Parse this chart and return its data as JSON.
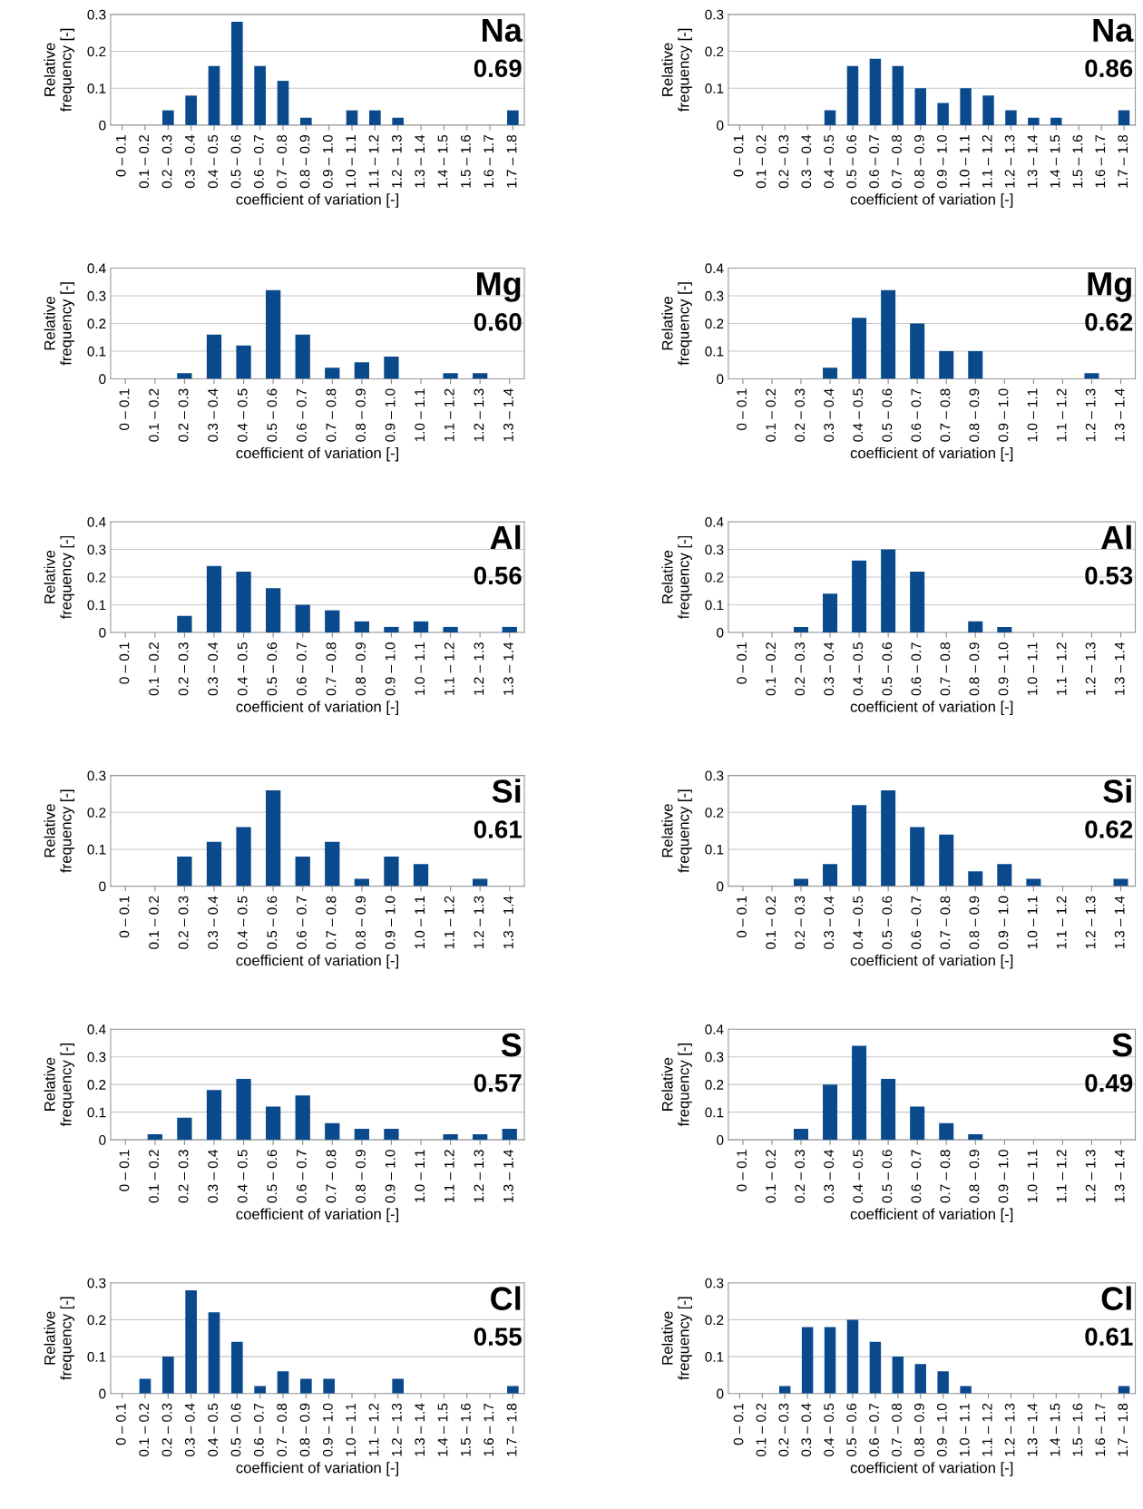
{
  "chart_data": [
    {
      "type": "bar",
      "categories": [
        "0 – 0.1",
        "0.1 – 0.2",
        "0.2 – 0.3",
        "0.3 – 0.4",
        "0.4 – 0.5",
        "0.5 – 0.6",
        "0.6 – 0.7",
        "0.7 – 0.8",
        "0.8 – 0.9",
        "0.9 – 1.0",
        "1.0 – 1.1",
        "1.1 – 1.2",
        "1.2 – 1.3",
        "1.3 – 1.4",
        "1.4 – 1.5",
        "1.5 – 1.6",
        "1.6 – 1.7",
        "1.7 – 1.8"
      ],
      "values": [
        0,
        0,
        0.04,
        0.08,
        0.16,
        0.28,
        0.16,
        0.12,
        0.02,
        0,
        0.04,
        0.04,
        0.02,
        0,
        0,
        0,
        0,
        0.04
      ],
      "color": "#0a4a8c",
      "ylim": [
        0,
        0.3
      ],
      "yticks": [
        0,
        0.1,
        0.2,
        0.3
      ],
      "grid": "y",
      "xlabel": "coefficient of variation [-]",
      "ylabel": "Relative\nfrequency [-]",
      "annotations": [
        "Na",
        "0.69"
      ]
    },
    {
      "type": "bar",
      "categories": [
        "0 – 0.1",
        "0.1 – 0.2",
        "0.2 – 0.3",
        "0.3 – 0.4",
        "0.4 – 0.5",
        "0.5 – 0.6",
        "0.6 – 0.7",
        "0.7 – 0.8",
        "0.8 – 0.9",
        "0.9 – 1.0",
        "1.0 – 1.1",
        "1.1 – 1.2",
        "1.2 – 1.3",
        "1.3 – 1.4",
        "1.4 – 1.5",
        "1.5 – 1.6",
        "1.6 – 1.7",
        "1.7 – 1.8"
      ],
      "values": [
        0,
        0,
        0,
        0,
        0.04,
        0.16,
        0.18,
        0.16,
        0.1,
        0.06,
        0.1,
        0.08,
        0.04,
        0.02,
        0.02,
        0,
        0,
        0.04
      ],
      "color": "#0a4a8c",
      "ylim": [
        0,
        0.3
      ],
      "yticks": [
        0,
        0.1,
        0.2,
        0.3
      ],
      "grid": "y",
      "xlabel": "coefficient of variation [-]",
      "ylabel": "Relative\nfrequency [-]",
      "annotations": [
        "Na",
        "0.86"
      ]
    },
    {
      "type": "bar",
      "categories": [
        "0 – 0.1",
        "0.1 – 0.2",
        "0.2 – 0.3",
        "0.3 – 0.4",
        "0.4 – 0.5",
        "0.5 – 0.6",
        "0.6 – 0.7",
        "0.7 – 0.8",
        "0.8 – 0.9",
        "0.9 – 1.0",
        "1.0 – 1.1",
        "1.1 – 1.2",
        "1.2 – 1.3",
        "1.3 – 1.4"
      ],
      "values": [
        0,
        0,
        0.02,
        0.16,
        0.12,
        0.32,
        0.16,
        0.04,
        0.06,
        0.08,
        0,
        0.02,
        0.02,
        0
      ],
      "color": "#0a4a8c",
      "ylim": [
        0,
        0.4
      ],
      "yticks": [
        0,
        0.1,
        0.2,
        0.3,
        0.4
      ],
      "grid": "y",
      "xlabel": "coefficient of variation [-]",
      "ylabel": "Relative\nfrequency [-]",
      "annotations": [
        "Mg",
        "0.60"
      ]
    },
    {
      "type": "bar",
      "categories": [
        "0 – 0.1",
        "0.1 – 0.2",
        "0.2 – 0.3",
        "0.3 – 0.4",
        "0.4 – 0.5",
        "0.5 – 0.6",
        "0.6 – 0.7",
        "0.7 – 0.8",
        "0.8 – 0.9",
        "0.9 – 1.0",
        "1.0 – 1.1",
        "1.1 – 1.2",
        "1.2 – 1.3",
        "1.3 – 1.4"
      ],
      "values": [
        0,
        0,
        0,
        0.04,
        0.22,
        0.32,
        0.2,
        0.1,
        0.1,
        0,
        0,
        0,
        0.02,
        0
      ],
      "color": "#0a4a8c",
      "ylim": [
        0,
        0.4
      ],
      "yticks": [
        0,
        0.1,
        0.2,
        0.3,
        0.4
      ],
      "grid": "y",
      "xlabel": "coefficient of variation [-]",
      "ylabel": "Relative\nfrequency [-]",
      "annotations": [
        "Mg",
        "0.62"
      ]
    },
    {
      "type": "bar",
      "categories": [
        "0 – 0.1",
        "0.1 – 0.2",
        "0.2 – 0.3",
        "0.3 – 0.4",
        "0.4 – 0.5",
        "0.5 – 0.6",
        "0.6 – 0.7",
        "0.7 – 0.8",
        "0.8 – 0.9",
        "0.9 – 1.0",
        "1.0 – 1.1",
        "1.1 – 1.2",
        "1.2 – 1.3",
        "1.3 – 1.4"
      ],
      "values": [
        0,
        0,
        0.06,
        0.24,
        0.22,
        0.16,
        0.1,
        0.08,
        0.04,
        0.02,
        0.04,
        0.02,
        0,
        0.02
      ],
      "color": "#0a4a8c",
      "ylim": [
        0,
        0.4
      ],
      "yticks": [
        0,
        0.1,
        0.2,
        0.3,
        0.4
      ],
      "grid": "y",
      "xlabel": "coefficient of variation [-]",
      "ylabel": "Relative\nfrequency [-]",
      "annotations": [
        "Al",
        "0.56"
      ]
    },
    {
      "type": "bar",
      "categories": [
        "0 – 0.1",
        "0.1 – 0.2",
        "0.2 – 0.3",
        "0.3 – 0.4",
        "0.4 – 0.5",
        "0.5 – 0.6",
        "0.6 – 0.7",
        "0.7 – 0.8",
        "0.8 – 0.9",
        "0.9 – 1.0",
        "1.0 – 1.1",
        "1.1 – 1.2",
        "1.2 – 1.3",
        "1.3 – 1.4"
      ],
      "values": [
        0,
        0,
        0.02,
        0.14,
        0.26,
        0.3,
        0.22,
        0,
        0.04,
        0.02,
        0,
        0,
        0,
        0
      ],
      "color": "#0a4a8c",
      "ylim": [
        0,
        0.4
      ],
      "yticks": [
        0,
        0.1,
        0.2,
        0.3,
        0.4
      ],
      "grid": "y",
      "xlabel": "coefficient of variation [-]",
      "ylabel": "Relative\nfrequency [-]",
      "annotations": [
        "Al",
        "0.53"
      ]
    },
    {
      "type": "bar",
      "categories": [
        "0 – 0.1",
        "0.1 – 0.2",
        "0.2 – 0.3",
        "0.3 – 0.4",
        "0.4 – 0.5",
        "0.5 – 0.6",
        "0.6 – 0.7",
        "0.7 – 0.8",
        "0.8 – 0.9",
        "0.9 – 1.0",
        "1.0 – 1.1",
        "1.1 – 1.2",
        "1.2 – 1.3",
        "1.3 – 1.4"
      ],
      "values": [
        0,
        0,
        0.08,
        0.12,
        0.16,
        0.26,
        0.08,
        0.12,
        0.02,
        0.08,
        0.06,
        0,
        0.02,
        0
      ],
      "color": "#0a4a8c",
      "ylim": [
        0,
        0.3
      ],
      "yticks": [
        0,
        0.1,
        0.2,
        0.3
      ],
      "grid": "y",
      "xlabel": "coefficient of variation [-]",
      "ylabel": "Relative\nfrequency [-]",
      "annotations": [
        "Si",
        "0.61"
      ]
    },
    {
      "type": "bar",
      "categories": [
        "0 – 0.1",
        "0.1 – 0.2",
        "0.2 – 0.3",
        "0.3 – 0.4",
        "0.4 – 0.5",
        "0.5 – 0.6",
        "0.6 – 0.7",
        "0.7 – 0.8",
        "0.8 – 0.9",
        "0.9 – 1.0",
        "1.0 – 1.1",
        "1.1 – 1.2",
        "1.2 – 1.3",
        "1.3 – 1.4"
      ],
      "values": [
        0,
        0,
        0.02,
        0.06,
        0.22,
        0.26,
        0.16,
        0.14,
        0.04,
        0.06,
        0.02,
        0,
        0,
        0.02
      ],
      "color": "#0a4a8c",
      "ylim": [
        0,
        0.3
      ],
      "yticks": [
        0,
        0.1,
        0.2,
        0.3
      ],
      "grid": "y",
      "xlabel": "coefficient of variation [-]",
      "ylabel": "Relative\nfrequency [-]",
      "annotations": [
        "Si",
        "0.62"
      ]
    },
    {
      "type": "bar",
      "categories": [
        "0 – 0.1",
        "0.1 – 0.2",
        "0.2 – 0.3",
        "0.3 – 0.4",
        "0.4 – 0.5",
        "0.5 – 0.6",
        "0.6 – 0.7",
        "0.7 – 0.8",
        "0.8 – 0.9",
        "0.9 – 1.0",
        "1.0 – 1.1",
        "1.1 – 1.2",
        "1.2 – 1.3",
        "1.3 – 1.4"
      ],
      "values": [
        0,
        0.02,
        0.08,
        0.18,
        0.22,
        0.12,
        0.16,
        0.06,
        0.04,
        0.04,
        0,
        0.02,
        0.02,
        0.04
      ],
      "color": "#0a4a8c",
      "ylim": [
        0,
        0.4
      ],
      "yticks": [
        0,
        0.1,
        0.2,
        0.3,
        0.4
      ],
      "grid": "y",
      "xlabel": "coefficient of variation [-]",
      "ylabel": "Relative\nfrequency [-]",
      "annotations": [
        "S",
        "0.57"
      ]
    },
    {
      "type": "bar",
      "categories": [
        "0 – 0.1",
        "0.1 – 0.2",
        "0.2 – 0.3",
        "0.3 – 0.4",
        "0.4 – 0.5",
        "0.5 – 0.6",
        "0.6 – 0.7",
        "0.7 – 0.8",
        "0.8 – 0.9",
        "0.9 – 1.0",
        "1.0 – 1.1",
        "1.1 – 1.2",
        "1.2 – 1.3",
        "1.3 – 1.4"
      ],
      "values": [
        0,
        0,
        0.04,
        0.2,
        0.34,
        0.22,
        0.12,
        0.06,
        0.02,
        0,
        0,
        0,
        0,
        0
      ],
      "color": "#0a4a8c",
      "ylim": [
        0,
        0.4
      ],
      "yticks": [
        0,
        0.1,
        0.2,
        0.3,
        0.4
      ],
      "grid": "y",
      "xlabel": "coefficient of variation [-]",
      "ylabel": "Relative\nfrequency [-]",
      "annotations": [
        "S",
        "0.49"
      ]
    },
    {
      "type": "bar",
      "categories": [
        "0 – 0.1",
        "0.1 – 0.2",
        "0.2 – 0.3",
        "0.3 – 0.4",
        "0.4 – 0.5",
        "0.5 – 0.6",
        "0.6 – 0.7",
        "0.7 – 0.8",
        "0.8 – 0.9",
        "0.9 – 1.0",
        "1.0 – 1.1",
        "1.1 – 1.2",
        "1.2 – 1.3",
        "1.3 – 1.4",
        "1.4 – 1.5",
        "1.5 – 1.6",
        "1.6 – 1.7",
        "1.7 – 1.8"
      ],
      "values": [
        0,
        0.04,
        0.1,
        0.28,
        0.22,
        0.14,
        0.02,
        0.06,
        0.04,
        0.04,
        0,
        0,
        0.04,
        0,
        0,
        0,
        0,
        0.02
      ],
      "color": "#0a4a8c",
      "ylim": [
        0,
        0.3
      ],
      "yticks": [
        0,
        0.1,
        0.2,
        0.3
      ],
      "grid": "y",
      "xlabel": "coefficient of variation [-]",
      "ylabel": "Relative\nfrequency [-]",
      "annotations": [
        "Cl",
        "0.55"
      ]
    },
    {
      "type": "bar",
      "categories": [
        "0 – 0.1",
        "0.1 – 0.2",
        "0.2 – 0.3",
        "0.3 – 0.4",
        "0.4 – 0.5",
        "0.5 – 0.6",
        "0.6 – 0.7",
        "0.7 – 0.8",
        "0.8 – 0.9",
        "0.9 – 1.0",
        "1.0 – 1.1",
        "1.1 – 1.2",
        "1.2 – 1.3",
        "1.3 – 1.4",
        "1.4 – 1.5",
        "1.5 – 1.6",
        "1.6 – 1.7",
        "1.7 – 1.8"
      ],
      "values": [
        0,
        0,
        0.02,
        0.18,
        0.18,
        0.2,
        0.14,
        0.1,
        0.08,
        0.06,
        0.02,
        0,
        0,
        0,
        0,
        0,
        0,
        0.02
      ],
      "color": "#0a4a8c",
      "ylim": [
        0,
        0.3
      ],
      "yticks": [
        0,
        0.1,
        0.2,
        0.3
      ],
      "grid": "y",
      "xlabel": "coefficient of variation [-]",
      "ylabel": "Relative\nfrequency [-]",
      "annotations": [
        "Cl",
        "0.61"
      ]
    }
  ]
}
